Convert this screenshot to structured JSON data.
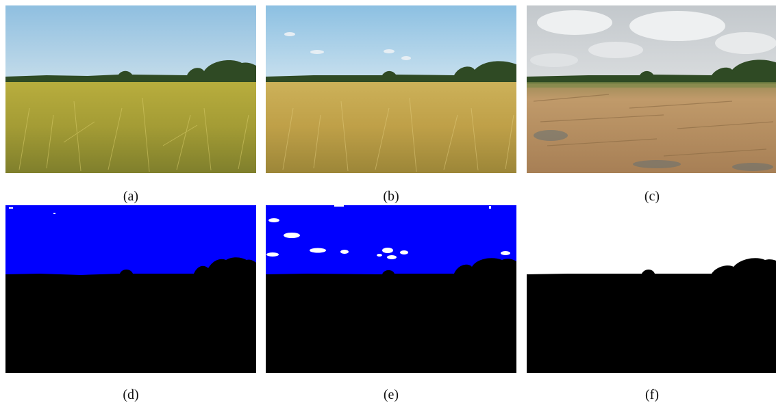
{
  "captions": {
    "a": "(a)",
    "b": "(b)",
    "c": "(c)",
    "d": "(d)",
    "e": "(e)",
    "f": "(f)"
  },
  "colors": {
    "sky_clear": "#a9cfe6",
    "sky_cloudy": "#cfd3d6",
    "field_green": "#a9a23a",
    "field_golden": "#c1a24a",
    "field_harvested": "#b58b5a",
    "tree_line": "#2f4a24",
    "mask_sky_blue": "#0000ff",
    "mask_ground": "#000000",
    "mask_cloud": "#ffffff"
  }
}
